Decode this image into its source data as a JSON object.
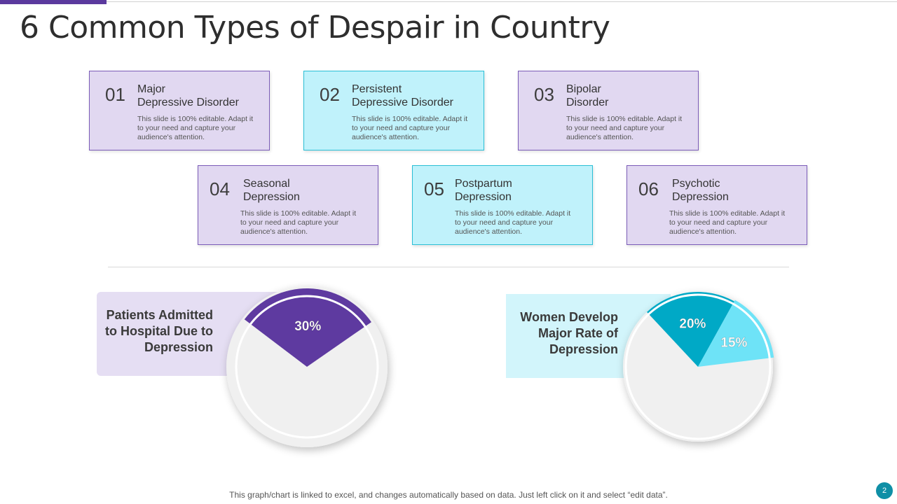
{
  "title": "6 Common Types of Despair in Country",
  "cards": [
    {
      "num": "01",
      "title_line1": "Major",
      "title_line2": "Depressive  Disorder",
      "body": "This slide is 100% editable.  Adapt it to your need and capture your audience's attention."
    },
    {
      "num": "02",
      "title_line1": "Persistent",
      "title_line2": "Depressive  Disorder",
      "body": "This slide is 100% editable.  Adapt it to your need and capture your audience's attention."
    },
    {
      "num": "03",
      "title_line1": "Bipolar",
      "title_line2": "Disorder",
      "body": "This slide is 100% editable.  Adapt it to your need and capture your audience's attention."
    },
    {
      "num": "04",
      "title_line1": "Seasonal",
      "title_line2": "Depression",
      "body": "This slide is 100% editable.  Adapt it to your need and capture your audience's attention."
    },
    {
      "num": "05",
      "title_line1": "Postpartum",
      "title_line2": "Depression",
      "body": "This slide is 100% editable.  Adapt it to your need and capture your audience's attention."
    },
    {
      "num": "06",
      "title_line1": "Psychotic",
      "title_line2": "Depression",
      "body": "This slide is 100% editable.  Adapt it to your need and capture your audience's attention."
    }
  ],
  "colors": {
    "purple": "#5e3aa0",
    "cyan_dark": "#00a9c6",
    "cyan_light": "#6ee3f7",
    "pie_bg": "#f0f0f0"
  },
  "chart_data": [
    {
      "type": "pie",
      "title": "Patients Admitted to Hospital Due to Depression",
      "title_lines": [
        "Patients Admitted",
        "to Hospital Due to",
        "Depression"
      ],
      "slices": [
        {
          "label": "30%",
          "value": 30,
          "color": "#5e3aa0"
        }
      ]
    },
    {
      "type": "pie",
      "title": "Women Develop Major Rate of Depression",
      "title_lines": [
        "Women Develop",
        "Major Rate of",
        "Depression"
      ],
      "slices": [
        {
          "label": "20%",
          "value": 20,
          "color": "#00a9c6"
        },
        {
          "label": "15%",
          "value": 15,
          "color": "#6ee3f7"
        }
      ]
    }
  ],
  "footer": {
    "note": "This graph/chart is linked to excel, and changes automatically based on data. Just left click on it and select “edit data”.",
    "page": "2"
  }
}
